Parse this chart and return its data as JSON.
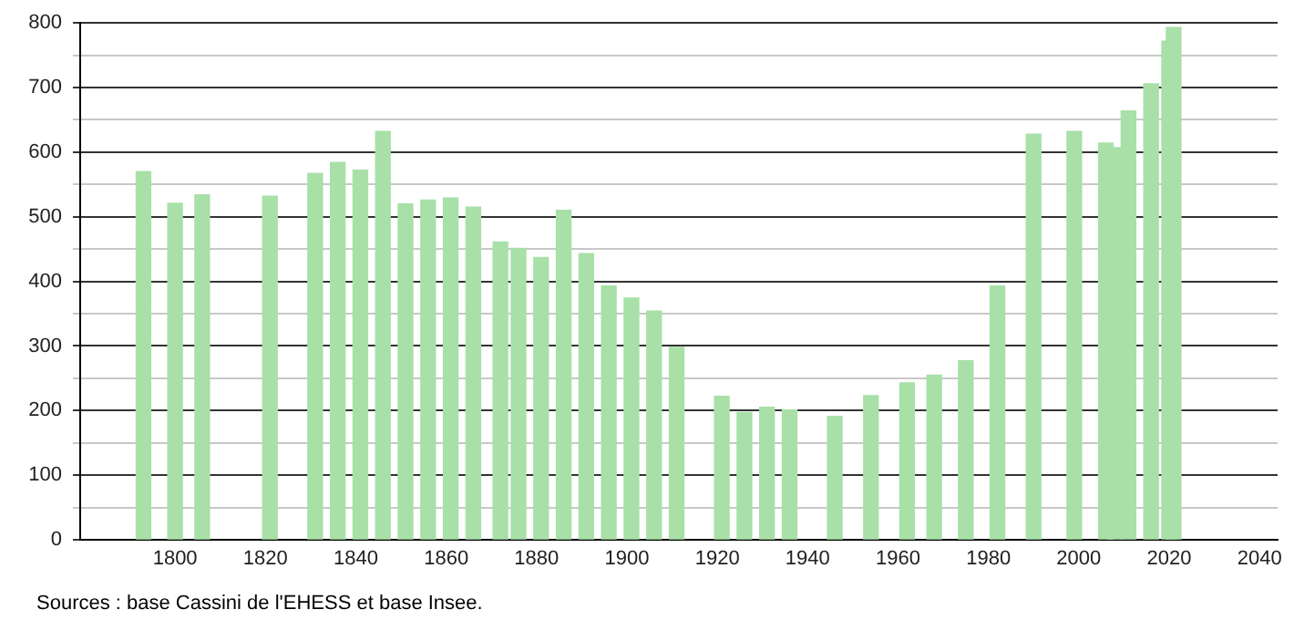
{
  "chart_data": {
    "type": "bar",
    "x": [
      1793,
      1800,
      1806,
      1821,
      1831,
      1836,
      1841,
      1846,
      1851,
      1856,
      1861,
      1866,
      1872,
      1876,
      1881,
      1886,
      1891,
      1896,
      1901,
      1906,
      1911,
      1921,
      1926,
      1931,
      1936,
      1946,
      1954,
      1962,
      1968,
      1975,
      1982,
      1990,
      1999,
      2006,
      2008,
      2011,
      2016,
      2020,
      2021
    ],
    "values": [
      570,
      521,
      534,
      532,
      567,
      584,
      572,
      632,
      520,
      526,
      529,
      515,
      461,
      451,
      437,
      510,
      443,
      393,
      374,
      354,
      298,
      222,
      197,
      205,
      201,
      191,
      223,
      243,
      255,
      277,
      393,
      628,
      632,
      614,
      607,
      664,
      706,
      772,
      793
    ],
    "color": "#a8e0a8",
    "xlim": [
      1779,
      2044
    ],
    "xticks": [
      1800,
      1820,
      1840,
      1860,
      1880,
      1900,
      1920,
      1940,
      1960,
      1980,
      2000,
      2020,
      2040
    ],
    "ylim": [
      0,
      800
    ],
    "yticks": [
      0,
      {
        "value": 50,
        "label": null
      },
      100,
      {
        "value": 150,
        "label": null
      },
      200,
      {
        "value": 250,
        "label": null
      },
      300,
      {
        "value": 350,
        "label": null
      },
      400,
      {
        "value": 450,
        "label": null
      },
      500,
      {
        "value": 550,
        "label": null
      },
      600,
      {
        "value": 650,
        "label": null
      },
      700,
      {
        "value": 750,
        "label": null
      },
      800
    ],
    "grid": "y",
    "legend": false,
    "annotations": [
      "Sources : base Cassini de l'EHESS et base Insee."
    ]
  }
}
